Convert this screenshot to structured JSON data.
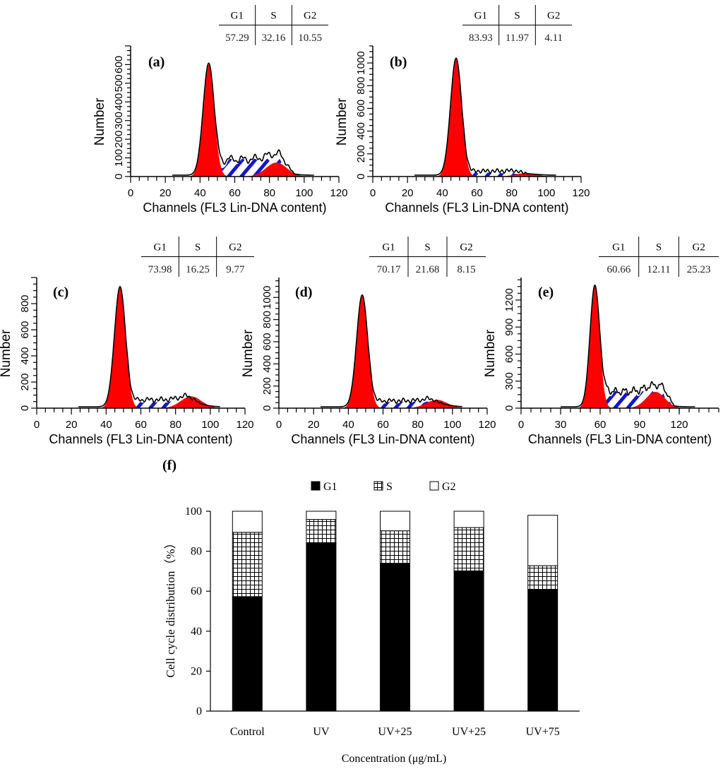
{
  "colors": {
    "g1_fill": "#ff0000",
    "s_stripe": "#1515c8",
    "outline": "#000000",
    "bar_g1": "#000000",
    "bar_grid": "#000000",
    "bar_g2": "#ffffff"
  },
  "panels": [
    {
      "label": "(a)",
      "table": {
        "headers": [
          "G1",
          "S",
          "G2"
        ],
        "values": [
          "57.29",
          "32.16",
          "10.55"
        ]
      },
      "chart_data": {
        "type": "area",
        "xlabel": "Channels (FL3 Lin-DNA content)",
        "ylabel": "Number",
        "xticks": [
          "0",
          "20",
          "40",
          "60",
          "80",
          "100",
          "120"
        ],
        "xlim": [
          0,
          120
        ],
        "yticks": [
          "0",
          "100",
          "200",
          "300",
          "400",
          "500",
          "600"
        ],
        "ylim": [
          0,
          700
        ],
        "peaks": {
          "g1_center": 45,
          "g1_height": 600,
          "g2_center": 84,
          "g2_height": 75,
          "s_height": 95,
          "s_start": 52,
          "s_end": 90
        }
      }
    },
    {
      "label": "(b)",
      "table": {
        "headers": [
          "G1",
          "S",
          "G2"
        ],
        "values": [
          "83.93",
          "11.97",
          "4.11"
        ]
      },
      "chart_data": {
        "type": "area",
        "xlabel": "Channels (FL3 Lin-DNA content)",
        "ylabel": "Number",
        "xticks": [
          "0",
          "20",
          "40",
          "60",
          "80",
          "100",
          "120"
        ],
        "xlim": [
          0,
          120
        ],
        "yticks": [
          "0",
          "200",
          "400",
          "600",
          "800",
          "1000"
        ],
        "ylim": [
          0,
          1150
        ],
        "peaks": {
          "g1_center": 48,
          "g1_height": 1030,
          "g2_center": 88,
          "g2_height": 30,
          "s_height": 40,
          "s_start": 55,
          "s_end": 85
        }
      }
    },
    {
      "label": "(c)",
      "table": {
        "headers": [
          "G1",
          "S",
          "G2"
        ],
        "values": [
          "73.98",
          "16.25",
          "9.77"
        ]
      },
      "chart_data": {
        "type": "area",
        "xlabel": "Channels (FL3 Lin-DNA content)",
        "ylabel": "Number",
        "xticks": [
          "0",
          "20",
          "40",
          "60",
          "80",
          "100",
          "120"
        ],
        "xlim": [
          0,
          120
        ],
        "yticks": [
          "0",
          "200",
          "400",
          "600",
          "800"
        ],
        "ylim": [
          0,
          1000
        ],
        "peaks": {
          "g1_center": 48,
          "g1_height": 920,
          "g2_center": 89,
          "g2_height": 90,
          "s_height": 60,
          "s_start": 55,
          "s_end": 90
        }
      }
    },
    {
      "label": "(d)",
      "table": {
        "headers": [
          "G1",
          "S",
          "G2"
        ],
        "values": [
          "70.17",
          "21.68",
          "8.15"
        ]
      },
      "chart_data": {
        "type": "area",
        "xlabel": "Channels (FL3 Lin-DNA content)",
        "ylabel": "Number",
        "xticks": [
          "0",
          "20",
          "40",
          "60",
          "80",
          "100",
          "120"
        ],
        "xlim": [
          0,
          120
        ],
        "yticks": [
          "0",
          "200",
          "400",
          "600",
          "800",
          "1000"
        ],
        "ylim": [
          0,
          1180
        ],
        "peaks": {
          "g1_center": 48,
          "g1_height": 1010,
          "g2_center": 91,
          "g2_height": 75,
          "s_height": 60,
          "s_start": 55,
          "s_end": 90
        }
      }
    },
    {
      "label": "(e)",
      "table": {
        "headers": [
          "G1",
          "S",
          "G2"
        ],
        "values": [
          "60.66",
          "12.11",
          "25.23"
        ]
      },
      "chart_data": {
        "type": "area",
        "xlabel": "Channels (FL3 Lin-DNA content)",
        "ylabel": "Number",
        "xticks": [
          "0",
          "30",
          "60",
          "90",
          "120"
        ],
        "xlim": [
          0,
          150
        ],
        "yticks": [
          "0",
          "300",
          "600",
          "900",
          "1200"
        ],
        "ylim": [
          0,
          1450
        ],
        "peaks": {
          "g1_center": 56,
          "g1_height": 1350,
          "g2_center": 102,
          "g2_height": 180,
          "s_height": 190,
          "s_start": 62,
          "s_end": 112
        }
      }
    }
  ],
  "bar_chart": {
    "label": "(f)",
    "legend": [
      "G1",
      "S",
      "G2"
    ],
    "chart_data": {
      "type": "bar",
      "stacked": true,
      "categories": [
        "Control",
        "UV",
        "UV+25",
        "UV+25",
        "UV+75"
      ],
      "series": [
        {
          "name": "G1",
          "values": [
            57.29,
            83.93,
            73.98,
            70.17,
            60.66
          ]
        },
        {
          "name": "S",
          "values": [
            32.16,
            11.97,
            16.25,
            21.68,
            12.11
          ]
        },
        {
          "name": "G2",
          "values": [
            10.55,
            4.11,
            9.77,
            8.15,
            25.23
          ]
        }
      ],
      "xlabel": "Concentration (μg/mL)",
      "ylabel": "Cell cycle distribution（%）",
      "yticks": [
        "0",
        "20",
        "40",
        "60",
        "80",
        "100"
      ],
      "ylim": [
        0,
        100
      ]
    }
  }
}
